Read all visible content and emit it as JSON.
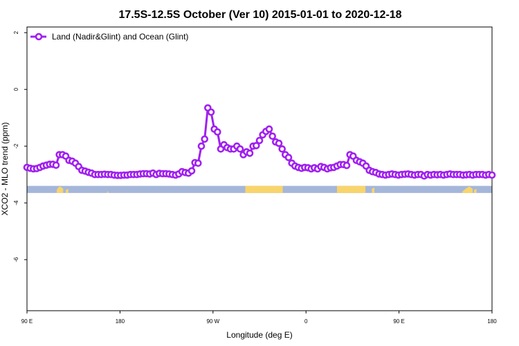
{
  "chart_data": {
    "type": "line",
    "title": "17.5S-12.5S October (Ver 10)   2015-01-01 to 2020-12-18",
    "xlabel": "Longitude (deg E)",
    "ylabel": "XCO2 - MLO trend (ppm)",
    "xlim": [
      90,
      450
    ],
    "ylim": [
      -7.8,
      2.2
    ],
    "x_ticks": [
      90,
      162,
      234,
      306,
      378,
      450
    ],
    "x_tick_labels": [
      "90 E",
      "180",
      "90 W",
      "0",
      "90 E",
      "180"
    ],
    "y_ticks": [
      2,
      0,
      -2,
      -4,
      -6
    ],
    "y_tick_labels": [
      "2",
      "0",
      "-2",
      "-4",
      "-6"
    ],
    "legend": {
      "position": "top-left"
    },
    "colors": {
      "series": "#a020f0",
      "ocean": "#a4b6d9",
      "land": "#f8d46c"
    },
    "series": [
      {
        "name": "Land (Nadir&Glint) and Ocean (Glint)",
        "x": [
          90,
          92.5,
          95,
          97.5,
          100,
          102.5,
          105,
          107.5,
          110,
          112.5,
          115,
          117.5,
          120,
          122.5,
          125,
          127.5,
          130,
          132.5,
          135,
          137.5,
          140,
          142.5,
          145,
          147.5,
          150,
          152.5,
          155,
          157.5,
          160,
          162.5,
          165,
          167.5,
          170,
          172.5,
          175,
          177.5,
          180,
          182.5,
          185,
          187.5,
          190,
          192.5,
          195,
          197.5,
          200,
          202.5,
          205,
          207.5,
          210,
          212.5,
          215,
          217.5,
          220,
          222.5,
          225,
          227.5,
          230,
          232.5,
          235,
          237.5,
          240,
          242.5,
          245,
          247.5,
          250,
          252.5,
          255,
          257.5,
          260,
          262.5,
          265,
          267.5,
          270,
          272.5,
          275,
          277.5,
          280,
          282.5,
          285,
          287.5,
          290,
          292.5,
          295,
          297.5,
          300,
          302.5,
          305,
          307.5,
          310,
          312.5,
          315,
          317.5,
          320,
          322.5,
          325,
          327.5,
          330,
          332.5,
          335,
          337.5,
          340,
          342.5,
          345,
          347.5,
          350,
          352.5,
          355,
          357.5,
          360,
          362.5,
          365,
          367.5,
          370,
          372.5,
          375,
          377.5,
          380,
          382.5,
          385,
          387.5,
          390,
          392.5,
          395,
          397.5,
          400,
          402.5,
          405,
          407.5,
          410,
          412.5,
          415,
          417.5,
          420,
          422.5,
          425,
          427.5,
          430,
          432.5,
          435,
          437.5,
          440,
          442.5,
          445,
          447.5,
          450
        ],
        "y": [
          -2.75,
          -2.78,
          -2.8,
          -2.79,
          -2.75,
          -2.7,
          -2.67,
          -2.64,
          -2.64,
          -2.67,
          -2.3,
          -2.3,
          -2.35,
          -2.5,
          -2.53,
          -2.6,
          -2.72,
          -2.85,
          -2.88,
          -2.92,
          -2.95,
          -3.0,
          -3.0,
          -3.0,
          -2.99,
          -3.0,
          -3.0,
          -3.02,
          -3.03,
          -3.03,
          -3.02,
          -3.02,
          -3.0,
          -3.0,
          -3.0,
          -2.98,
          -2.97,
          -2.97,
          -2.98,
          -2.95,
          -3.0,
          -2.96,
          -2.97,
          -2.97,
          -2.98,
          -3.0,
          -3.02,
          -2.98,
          -2.9,
          -2.93,
          -2.95,
          -2.87,
          -2.58,
          -2.6,
          -2.0,
          -1.75,
          -0.65,
          -0.8,
          -1.4,
          -1.5,
          -2.1,
          -1.95,
          -2.05,
          -2.1,
          -2.1,
          -2.0,
          -2.1,
          -2.3,
          -2.2,
          -2.25,
          -2.0,
          -1.98,
          -1.8,
          -1.6,
          -1.48,
          -1.4,
          -1.65,
          -1.85,
          -1.9,
          -2.1,
          -2.3,
          -2.4,
          -2.6,
          -2.7,
          -2.75,
          -2.78,
          -2.75,
          -2.76,
          -2.8,
          -2.76,
          -2.8,
          -2.72,
          -2.75,
          -2.8,
          -2.76,
          -2.75,
          -2.7,
          -2.65,
          -2.65,
          -2.68,
          -2.3,
          -2.35,
          -2.5,
          -2.55,
          -2.6,
          -2.7,
          -2.85,
          -2.9,
          -2.93,
          -2.98,
          -3.0,
          -3.02,
          -3.0,
          -2.98,
          -3.0,
          -3.02,
          -3.0,
          -2.99,
          -2.98,
          -3.0,
          -3.02,
          -3.0,
          -3.0,
          -3.05,
          -3.0,
          -3.02,
          -3.0,
          -3.01,
          -3.0,
          -3.02,
          -3.0,
          -2.98,
          -3.0,
          -3.0,
          -3.0,
          -3.02,
          -3.01,
          -3.0,
          -3.02,
          -3.0,
          -3.0,
          -3.0,
          -3.02,
          -3.0,
          -3.02
        ]
      }
    ],
    "surface_strip": {
      "y_range": [
        -3.65,
        -3.4
      ],
      "land_segments": [
        {
          "x": [
            113,
            118
          ],
          "top": [
            -3.55,
            -3.45,
            -3.42,
            -3.45,
            -3.5
          ]
        },
        {
          "x": [
            120,
            122
          ],
          "top": [
            -3.55,
            -3.5
          ]
        },
        {
          "x": [
            152,
            153
          ],
          "top": [
            -3.6,
            -3.6
          ]
        },
        {
          "x": [
            259,
            288
          ],
          "top": [
            -3.4,
            -3.4
          ]
        },
        {
          "x": [
            330,
            352
          ],
          "top": [
            -3.4,
            -3.4
          ]
        },
        {
          "x": [
            357,
            359
          ],
          "top": [
            -3.5,
            -3.45
          ]
        },
        {
          "x": [
            427,
            435
          ],
          "top": [
            -3.6,
            -3.5,
            -3.42,
            -3.5
          ]
        },
        {
          "x": [
            436,
            438
          ],
          "top": [
            -3.55,
            -3.5
          ]
        }
      ]
    }
  }
}
